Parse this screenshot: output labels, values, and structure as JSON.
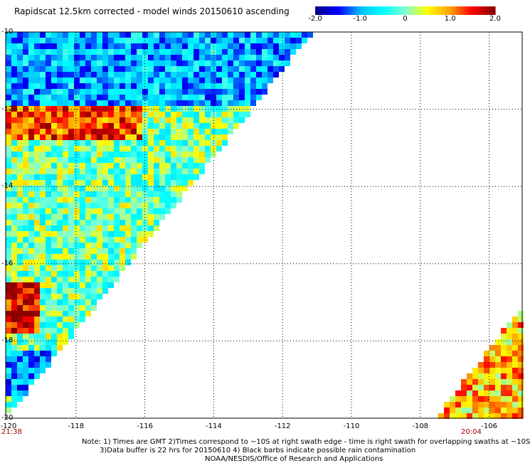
{
  "title": "Rapidscat 12.5km corrected - model winds 20150610 ascending",
  "colorbar": {
    "ticks": [
      "-2.0",
      "-1.0",
      "0",
      "1.0",
      "2.0"
    ],
    "range": [
      -2.0,
      2.0
    ],
    "colors": [
      "#00008b",
      "#0000ff",
      "#00bfff",
      "#00ffff",
      "#7fffd4",
      "#ffff00",
      "#ffa500",
      "#ff0000",
      "#8b0000"
    ]
  },
  "map": {
    "lon_labels": [
      "-120",
      "-118",
      "-116",
      "-114",
      "-112",
      "-110",
      "-108",
      "-106"
    ],
    "lat_labels": [
      "-10",
      "-12",
      "-14",
      "-16",
      "-18",
      "-20"
    ],
    "grid": "dotted",
    "lon_range": [
      -120,
      -105
    ],
    "lat_range": [
      -20,
      -10
    ],
    "swaths": [
      {
        "time": "21:38",
        "region": "western triangle"
      },
      {
        "time": "20:04",
        "region": "south-east corner"
      }
    ]
  },
  "notes": {
    "line1": "Note: 1) Times are GMT 2)Times correspond to ~10S at right swath edge - time is right swath for overlapping swaths at ~10S",
    "line2": "3)Data buffer is 22 hrs for 20150610 4) Black barbs indicate possible rain contamination",
    "line3": "NOAA/NESDIS/Office of Research and Applications"
  }
}
